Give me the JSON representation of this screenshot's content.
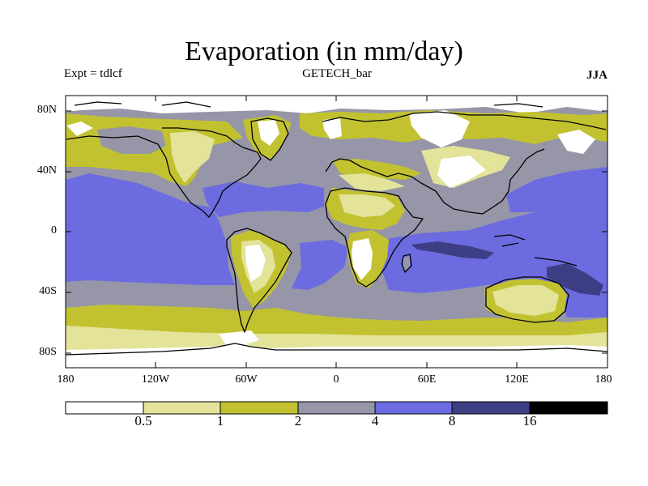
{
  "header": {
    "title": "Evaporation (in mm/day)",
    "experiment": "Expt = tdlcf",
    "dataset": "GETECH_bar",
    "season": "JJA"
  },
  "map": {
    "lat_labels": [
      "80N",
      "40N",
      "0",
      "40S",
      "80S"
    ],
    "lon_labels": [
      "180",
      "120W",
      "60W",
      "0",
      "60E",
      "120E",
      "180"
    ]
  },
  "colorbar": {
    "labels": [
      "0.5",
      "1",
      "2",
      "4",
      "8",
      "16"
    ],
    "colors": [
      "#ffffff",
      "#e3e39a",
      "#c2c230",
      "#9696a8",
      "#6c6ce0",
      "#3e3e86",
      "#000000"
    ]
  },
  "palette": {
    "ocean_base": "#9696a8",
    "white": "#ffffff",
    "pale": "#e3e39a",
    "olive": "#c2c230",
    "grey": "#9696a8",
    "blue": "#6c6ce0",
    "navy": "#3e3e86",
    "coast": "#000000"
  }
}
